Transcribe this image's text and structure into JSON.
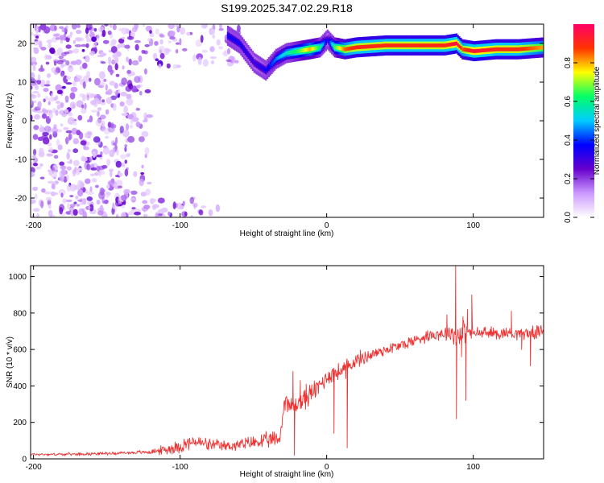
{
  "figure": {
    "title": "S199.2025.347.02.29.R18"
  },
  "chart_data": [
    {
      "id": "spectrogram",
      "type": "heatmap",
      "title": "S199.2025.347.02.29.R18",
      "xlabel": "Height of straight line (km)",
      "ylabel": "Frequency (Hz)",
      "xlim": [
        -202,
        148
      ],
      "ylim": [
        -25,
        25
      ],
      "xticks": [
        -200,
        -100,
        0,
        100
      ],
      "xtick_labels": [
        "-200",
        "-100",
        "0",
        "100"
      ],
      "yticks": [
        -20,
        -10,
        0,
        10,
        20
      ],
      "ytick_labels": [
        "-20",
        "-10",
        "0",
        "10",
        "20"
      ],
      "grid": false,
      "colorbar": {
        "label": "Normalized spectral amplitude",
        "range": [
          0,
          1
        ],
        "ticks": [
          0,
          0.2,
          0.4,
          0.6,
          0.8
        ],
        "tick_labels": [
          "0.0",
          "0.2",
          "0.4",
          "0.6",
          "0.8"
        ],
        "colors": [
          "#ffffff",
          "#cc99ff",
          "#6600cc",
          "#0000ff",
          "#00ccff",
          "#00ff66",
          "#ffff00",
          "#ff3300",
          "#ff0066"
        ]
      },
      "ridge": {
        "x": [
          -68,
          -60,
          -50,
          -42,
          -35,
          -28,
          -20,
          -12,
          -5,
          0,
          5,
          12,
          20,
          40,
          60,
          80,
          88,
          92,
          100,
          115,
          130,
          148
        ],
        "freq": [
          22,
          20,
          15,
          13,
          16,
          17.5,
          18,
          18.5,
          19,
          21,
          19,
          18.5,
          19,
          19.5,
          19.5,
          19.5,
          20,
          18.5,
          18,
          18.5,
          18.5,
          19
        ],
        "amplitude": [
          0.35,
          0.35,
          0.3,
          0.35,
          0.45,
          0.55,
          0.65,
          0.8,
          0.6,
          0.3,
          0.65,
          0.85,
          0.9,
          0.9,
          0.9,
          0.9,
          0.95,
          0.85,
          0.95,
          0.9,
          0.9,
          0.8
        ]
      }
    },
    {
      "id": "snr",
      "type": "line",
      "xlabel": "Height of straight line (km)",
      "ylabel": "SNR (10 * v/v)",
      "xlim": [
        -202,
        148
      ],
      "ylim": [
        0,
        1060
      ],
      "xticks": [
        -200,
        -100,
        0,
        100
      ],
      "xtick_labels": [
        "-200",
        "-100",
        "0",
        "100"
      ],
      "yticks": [
        0,
        200,
        400,
        600,
        800,
        1000
      ],
      "ytick_labels": [
        "0",
        "200",
        "400",
        "600",
        "800",
        "1000"
      ],
      "grid": false,
      "series": [
        {
          "color": "#ee3333",
          "x": [
            -202,
            -180,
            -160,
            -140,
            -120,
            -110,
            -100,
            -90,
            -80,
            -70,
            -60,
            -50,
            -40,
            -32,
            -28,
            -25,
            -20,
            -15,
            -10,
            -5,
            0,
            5,
            10,
            15,
            20,
            30,
            40,
            50,
            60,
            70,
            80,
            86,
            88,
            90,
            92,
            95,
            100,
            110,
            120,
            130,
            140,
            148
          ],
          "y": [
            25,
            25,
            28,
            32,
            38,
            50,
            70,
            95,
            75,
            70,
            75,
            90,
            100,
            110,
            350,
            280,
            300,
            330,
            360,
            400,
            450,
            470,
            480,
            510,
            540,
            570,
            600,
            620,
            650,
            680,
            690,
            700,
            650,
            700,
            690,
            700,
            690,
            690,
            690,
            690,
            690,
            700
          ],
          "noise": [
            8,
            8,
            8,
            9,
            12,
            30,
            40,
            40,
            35,
            30,
            35,
            40,
            45,
            50,
            60,
            60,
            60,
            60,
            60,
            55,
            55,
            50,
            50,
            45,
            45,
            40,
            35,
            35,
            35,
            35,
            40,
            60,
            80,
            90,
            80,
            60,
            40,
            35,
            35,
            35,
            35,
            35
          ],
          "spikes": [
            [
              -23,
              480
            ],
            [
              -22,
              20
            ],
            [
              -18,
              430
            ],
            [
              -14,
              410
            ],
            [
              -8,
              410
            ],
            [
              -3,
              410
            ],
            [
              5,
              140
            ],
            [
              13,
              440
            ],
            [
              14,
              60
            ],
            [
              82,
              790
            ],
            [
              88,
              1060
            ],
            [
              88.5,
              220
            ],
            [
              92,
              560
            ],
            [
              93,
              780
            ],
            [
              95,
              320
            ],
            [
              96,
              820
            ],
            [
              99,
              900
            ],
            [
              126,
              810
            ],
            [
              133,
              600
            ],
            [
              139,
              510
            ],
            [
              148,
              770
            ]
          ]
        }
      ]
    }
  ]
}
